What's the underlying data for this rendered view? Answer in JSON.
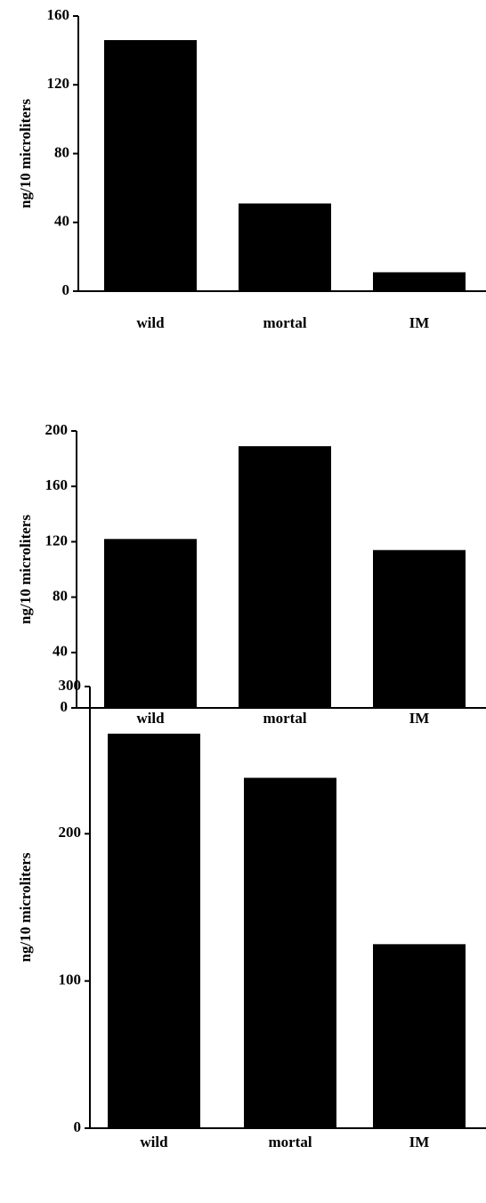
{
  "chart_data": [
    {
      "type": "bar",
      "y_label": "ng/10 microliters",
      "categories": [
        "wild",
        "mortal",
        "IM"
      ],
      "values": [
        146,
        51,
        11
      ],
      "color": "#000000",
      "ylim": [
        0,
        160
      ],
      "yticks": [
        0,
        40,
        80,
        120,
        160
      ]
    },
    {
      "type": "bar",
      "y_label": "ng/10 microliters",
      "categories": [
        "wild",
        "mortal",
        "IM"
      ],
      "values": [
        122,
        189,
        114
      ],
      "color": "#000000",
      "ylim": [
        0,
        200
      ],
      "yticks": [
        0,
        40,
        80,
        120,
        160,
        200
      ]
    },
    {
      "type": "bar",
      "y_label": "ng/10 microliters",
      "categories": [
        "wild",
        "mortal",
        "IM"
      ],
      "values": [
        268,
        238,
        125
      ],
      "color": "#000000",
      "ylim": [
        0,
        300
      ],
      "yticks": [
        0,
        100,
        200,
        300
      ]
    }
  ]
}
